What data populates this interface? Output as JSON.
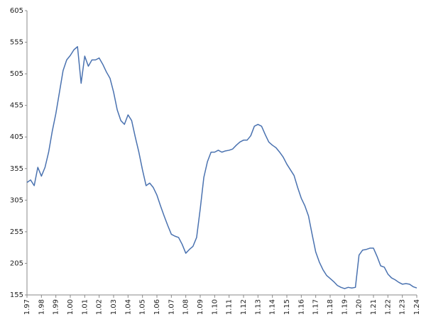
{
  "chart_data": {
    "type": "line",
    "categories": [
      "1.97",
      null,
      null,
      null,
      "1.98",
      null,
      null,
      null,
      "1.99",
      null,
      null,
      null,
      "1.00",
      null,
      null,
      null,
      "1.01",
      null,
      null,
      null,
      "1.02",
      null,
      null,
      null,
      "1.03",
      null,
      null,
      null,
      "1.04",
      null,
      null,
      null,
      "1.05",
      null,
      null,
      null,
      "1.06",
      null,
      null,
      null,
      "1.07",
      null,
      null,
      null,
      "1.08",
      null,
      null,
      null,
      "1.09",
      null,
      null,
      null,
      "1.10",
      null,
      null,
      null,
      "1.11",
      null,
      null,
      null,
      "1.12",
      null,
      null,
      null,
      "1.13",
      null,
      null,
      null,
      "1.14",
      null,
      null,
      null,
      "1.15",
      null,
      null,
      null,
      "1.16",
      null,
      null,
      null,
      "1.17",
      null,
      null,
      null,
      "1.18",
      null,
      null,
      null,
      "1.19",
      null,
      null,
      null,
      "1.20",
      null,
      null,
      null,
      "1.21",
      null,
      null,
      null,
      "1.22",
      null,
      null,
      null,
      "1.23",
      null,
      null,
      null,
      "1.24"
    ],
    "values": [
      333,
      337,
      328,
      357,
      343,
      357,
      381,
      414,
      442,
      476,
      510,
      527,
      534,
      543,
      548,
      490,
      533,
      517,
      527,
      527,
      530,
      520,
      508,
      498,
      476,
      448,
      431,
      425,
      440,
      431,
      405,
      381,
      353,
      328,
      332,
      325,
      313,
      296,
      280,
      265,
      251,
      248,
      246,
      235,
      221,
      227,
      232,
      246,
      291,
      341,
      366,
      381,
      381,
      384,
      381,
      383,
      384,
      386,
      392,
      397,
      400,
      400,
      407,
      422,
      425,
      422,
      409,
      397,
      392,
      388,
      381,
      373,
      362,
      353,
      344,
      325,
      308,
      296,
      280,
      251,
      223,
      207,
      195,
      186,
      181,
      176,
      170,
      167,
      165,
      167,
      166,
      167,
      218,
      226,
      227,
      229,
      229,
      216,
      201,
      199,
      188,
      182,
      179,
      175,
      172,
      173,
      172,
      168,
      166
    ],
    "color": "#4a72b0",
    "ylim": [
      155,
      605
    ],
    "yticks": [
      155,
      205,
      255,
      305,
      355,
      405,
      455,
      505,
      555,
      605
    ],
    "grid": false
  }
}
